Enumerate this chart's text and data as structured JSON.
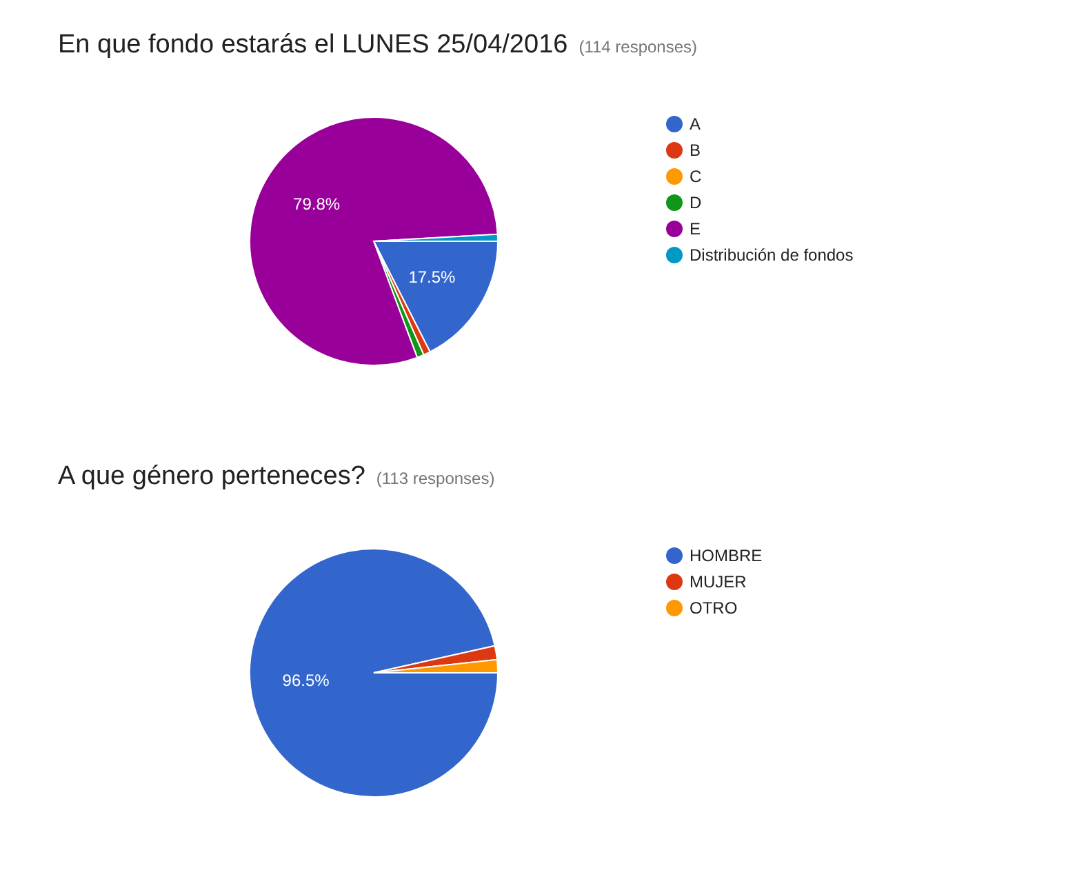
{
  "chart_data": [
    {
      "type": "pie",
      "title": "En que fondo estarás el LUNES 25/04/2016",
      "subtitle": "(114 responses)",
      "categories": [
        "A",
        "B",
        "C",
        "D",
        "E",
        "Distribución de fondos"
      ],
      "values": [
        17.5,
        0.9,
        0,
        0.9,
        79.8,
        0.9
      ],
      "colors": [
        "#3366cc",
        "#dc3912",
        "#ff9900",
        "#109618",
        "#990099",
        "#0099c6"
      ],
      "value_labels": [
        "17.5%",
        null,
        null,
        null,
        "79.8%",
        null
      ],
      "legend": "right"
    },
    {
      "type": "pie",
      "title": "A que género perteneces?",
      "subtitle": "(113 responses)",
      "categories": [
        "HOMBRE",
        "MUJER",
        "OTRO"
      ],
      "values": [
        96.5,
        1.8,
        1.7
      ],
      "colors": [
        "#3366cc",
        "#dc3912",
        "#ff9900"
      ],
      "value_labels": [
        "96.5%",
        null,
        null
      ],
      "legend": "right"
    }
  ]
}
